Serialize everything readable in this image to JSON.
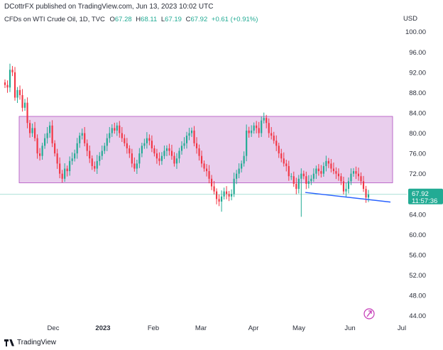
{
  "header": {
    "published": "DCottrFX published on TradingView.com, Jun 13, 2023 10:02 UTC",
    "symbol": "CFDs on WTI Crude Oil, 1D, TVC",
    "o_label": "O",
    "o_value": "67.28",
    "h_label": "H",
    "h_value": "68.11",
    "l_label": "L",
    "l_value": "67.19",
    "c_label": "C",
    "c_value": "67.92",
    "change": "+0.61 (+0.91%)",
    "currency": "USD"
  },
  "footer": {
    "brand": "TradingView"
  },
  "colors": {
    "up": "#22ab94",
    "down": "#f23645",
    "box_fill": "#e1bee7",
    "box_stroke": "#b04fc0",
    "trendline": "#2962ff",
    "price_tag": "#22ab94"
  },
  "price_tag": {
    "price": "67.92",
    "countdown": "11:57:36"
  },
  "chart_data": {
    "type": "candlestick",
    "title": "CFDs on WTI Crude Oil, 1D, TVC",
    "ylabel": "USD",
    "ylim": [
      42.4,
      101.5
    ],
    "y_ticks": [
      "100.00",
      "96.00",
      "92.00",
      "88.00",
      "84.00",
      "80.00",
      "76.00",
      "72.00",
      "68.00",
      "64.00",
      "60.00",
      "56.00",
      "52.00",
      "48.00",
      "44.00"
    ],
    "x_ticks": [
      {
        "label": "Dec",
        "bold": false
      },
      {
        "label": "2023",
        "bold": true
      },
      {
        "label": "Feb",
        "bold": false
      },
      {
        "label": "Mar",
        "bold": false
      },
      {
        "label": "Apr",
        "bold": false
      },
      {
        "label": "May",
        "bold": false
      },
      {
        "label": "Jun",
        "bold": false
      },
      {
        "label": "Jul",
        "bold": false
      }
    ],
    "range_box": {
      "top": 83.3,
      "bottom": 70.2
    },
    "trendline": {
      "from": 68.3,
      "to": 66.4
    },
    "current_price": 67.92,
    "closes": [
      89.5,
      89.0,
      92.5,
      92.0,
      87.0,
      88.5,
      87.5,
      85.0,
      86.0,
      82.0,
      80.0,
      81.0,
      79.0,
      76.0,
      75.5,
      77.5,
      79.0,
      80.0,
      81.5,
      78.0,
      76.0,
      74.0,
      72.0,
      71.0,
      73.0,
      72.5,
      74.5,
      75.0,
      76.0,
      78.0,
      79.5,
      80.0,
      78.0,
      76.5,
      75.0,
      73.5,
      73.0,
      74.5,
      75.5,
      76.5,
      77.5,
      79.0,
      80.0,
      81.0,
      80.5,
      81.5,
      80.0,
      79.0,
      78.0,
      77.0,
      76.0,
      74.0,
      73.0,
      74.0,
      76.0,
      77.5,
      78.0,
      79.0,
      78.5,
      77.0,
      76.0,
      75.0,
      74.5,
      75.5,
      76.5,
      77.0,
      76.5,
      75.5,
      74.0,
      75.0,
      76.5,
      77.5,
      78.0,
      79.5,
      80.0,
      80.5,
      78.0,
      77.0,
      75.5,
      74.0,
      73.0,
      72.5,
      71.0,
      69.5,
      68.5,
      67.0,
      66.5,
      67.5,
      68.5,
      68.0,
      67.5,
      68.0,
      71.0,
      72.0,
      73.0,
      74.0,
      75.5,
      80.5,
      80.0,
      80.5,
      81.5,
      81.0,
      80.0,
      82.5,
      83.0,
      82.0,
      80.0,
      79.5,
      78.5,
      77.5,
      76.0,
      75.0,
      74.0,
      73.5,
      71.5,
      71.5,
      70.0,
      69.0,
      71.0,
      72.0,
      71.5,
      70.0,
      70.5,
      71.0,
      72.0,
      73.0,
      72.5,
      72.0,
      73.5,
      74.5,
      74.0,
      73.0,
      72.5,
      72.0,
      71.5,
      70.5,
      68.5,
      69.0,
      70.5,
      72.0,
      72.5,
      72.0,
      71.5,
      70.5,
      69.0,
      67.3,
      67.9
    ]
  }
}
